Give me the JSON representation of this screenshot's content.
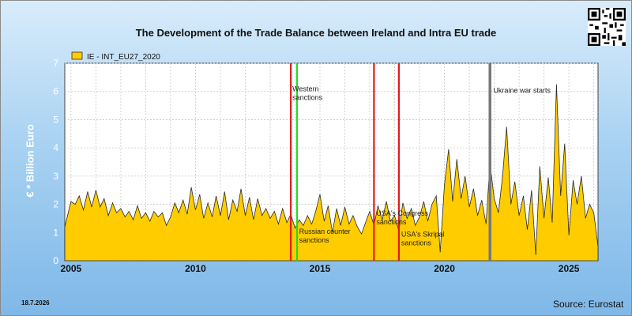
{
  "page": {
    "title": "The Development of the Trade Balance between Ireland and Intra EU trade",
    "date": "18.7.2026",
    "source": "Source: Eurostat",
    "qr_icon": "qr-code-icon"
  },
  "chart_data": {
    "type": "area",
    "title": "The Development of the Trade Balance between Ireland and Intra EU trade",
    "ylabel": "€ * Billion Euro",
    "xlabel": "",
    "xlim": [
      2004.75,
      2026.17
    ],
    "ylim": [
      0,
      7
    ],
    "yticks": [
      "0",
      "1",
      "2",
      "3",
      "4",
      "5",
      "6",
      "7"
    ],
    "xticks": [
      "2005",
      "2010",
      "2015",
      "2020",
      "2025"
    ],
    "grid": true,
    "legend_position": "top-left",
    "colors": {
      "fill": "#ffcc00",
      "stroke": "#2a2a2a",
      "red_marker": "#e41b1b",
      "green_marker": "#22dd22",
      "grey_marker": "#777777"
    },
    "series": [
      {
        "name": "IE - INT_EU27_2020",
        "points": [
          [
            2004.75,
            1.2
          ],
          [
            2005.0,
            2.1
          ],
          [
            2005.17,
            2.0
          ],
          [
            2005.33,
            2.3
          ],
          [
            2005.5,
            1.8
          ],
          [
            2005.67,
            2.45
          ],
          [
            2005.83,
            1.9
          ],
          [
            2006.0,
            2.5
          ],
          [
            2006.17,
            1.9
          ],
          [
            2006.33,
            2.2
          ],
          [
            2006.5,
            1.6
          ],
          [
            2006.67,
            2.05
          ],
          [
            2006.83,
            1.7
          ],
          [
            2007.0,
            1.85
          ],
          [
            2007.17,
            1.55
          ],
          [
            2007.33,
            1.75
          ],
          [
            2007.5,
            1.45
          ],
          [
            2007.67,
            1.95
          ],
          [
            2007.83,
            1.5
          ],
          [
            2008.0,
            1.7
          ],
          [
            2008.17,
            1.4
          ],
          [
            2008.33,
            1.75
          ],
          [
            2008.5,
            1.55
          ],
          [
            2008.67,
            1.7
          ],
          [
            2008.83,
            1.25
          ],
          [
            2009.0,
            1.55
          ],
          [
            2009.17,
            2.05
          ],
          [
            2009.33,
            1.7
          ],
          [
            2009.5,
            2.15
          ],
          [
            2009.67,
            1.65
          ],
          [
            2009.83,
            2.6
          ],
          [
            2010.0,
            1.8
          ],
          [
            2010.17,
            2.35
          ],
          [
            2010.33,
            1.5
          ],
          [
            2010.5,
            2.05
          ],
          [
            2010.67,
            1.55
          ],
          [
            2010.83,
            2.3
          ],
          [
            2011.0,
            1.6
          ],
          [
            2011.17,
            2.45
          ],
          [
            2011.33,
            1.45
          ],
          [
            2011.5,
            2.15
          ],
          [
            2011.67,
            1.75
          ],
          [
            2011.83,
            2.55
          ],
          [
            2012.0,
            1.6
          ],
          [
            2012.17,
            2.25
          ],
          [
            2012.33,
            1.45
          ],
          [
            2012.5,
            2.2
          ],
          [
            2012.67,
            1.6
          ],
          [
            2012.83,
            1.85
          ],
          [
            2013.0,
            1.5
          ],
          [
            2013.17,
            1.75
          ],
          [
            2013.33,
            1.3
          ],
          [
            2013.5,
            1.85
          ],
          [
            2013.67,
            1.35
          ],
          [
            2013.83,
            1.65
          ],
          [
            2014.0,
            1.15
          ],
          [
            2014.17,
            1.45
          ],
          [
            2014.33,
            1.25
          ],
          [
            2014.5,
            1.6
          ],
          [
            2014.67,
            1.3
          ],
          [
            2014.83,
            1.75
          ],
          [
            2015.0,
            2.35
          ],
          [
            2015.17,
            1.4
          ],
          [
            2015.33,
            1.95
          ],
          [
            2015.5,
            1.0
          ],
          [
            2015.67,
            1.85
          ],
          [
            2015.83,
            1.25
          ],
          [
            2016.0,
            1.9
          ],
          [
            2016.17,
            1.3
          ],
          [
            2016.33,
            1.6
          ],
          [
            2016.5,
            1.2
          ],
          [
            2016.67,
            0.95
          ],
          [
            2016.83,
            1.35
          ],
          [
            2017.0,
            1.75
          ],
          [
            2017.17,
            1.25
          ],
          [
            2017.33,
            1.95
          ],
          [
            2017.5,
            1.45
          ],
          [
            2017.67,
            2.1
          ],
          [
            2017.83,
            1.4
          ],
          [
            2018.0,
            1.6
          ],
          [
            2018.17,
            1.05
          ],
          [
            2018.33,
            2.05
          ],
          [
            2018.5,
            1.5
          ],
          [
            2018.67,
            1.85
          ],
          [
            2018.83,
            1.25
          ],
          [
            2019.0,
            1.55
          ],
          [
            2019.17,
            2.1
          ],
          [
            2019.33,
            1.4
          ],
          [
            2019.5,
            2.0
          ],
          [
            2019.67,
            2.3
          ],
          [
            2019.83,
            0.3
          ],
          [
            2020.0,
            2.7
          ],
          [
            2020.17,
            3.95
          ],
          [
            2020.33,
            2.1
          ],
          [
            2020.5,
            3.6
          ],
          [
            2020.67,
            2.2
          ],
          [
            2020.83,
            3.0
          ],
          [
            2021.0,
            1.9
          ],
          [
            2021.17,
            2.55
          ],
          [
            2021.33,
            1.6
          ],
          [
            2021.5,
            2.15
          ],
          [
            2021.67,
            1.3
          ],
          [
            2021.83,
            3.45
          ],
          [
            2022.0,
            2.2
          ],
          [
            2022.17,
            1.7
          ],
          [
            2022.33,
            2.95
          ],
          [
            2022.5,
            4.75
          ],
          [
            2022.67,
            2.0
          ],
          [
            2022.83,
            2.8
          ],
          [
            2023.0,
            1.6
          ],
          [
            2023.17,
            2.3
          ],
          [
            2023.33,
            1.1
          ],
          [
            2023.5,
            2.5
          ],
          [
            2023.67,
            0.2
          ],
          [
            2023.83,
            3.35
          ],
          [
            2024.0,
            1.5
          ],
          [
            2024.17,
            2.95
          ],
          [
            2024.33,
            1.35
          ],
          [
            2024.5,
            6.25
          ],
          [
            2024.67,
            2.3
          ],
          [
            2024.83,
            4.15
          ],
          [
            2025.0,
            0.9
          ],
          [
            2025.17,
            2.85
          ],
          [
            2025.33,
            2.0
          ],
          [
            2025.5,
            3.0
          ],
          [
            2025.67,
            1.5
          ],
          [
            2025.83,
            2.0
          ],
          [
            2026.0,
            1.7
          ],
          [
            2026.17,
            0.5
          ]
        ]
      }
    ],
    "markers": [
      {
        "x": 2013.83,
        "color": "red",
        "label": ""
      },
      {
        "x": 2014.08,
        "color": "green",
        "label": ""
      },
      {
        "x": 2017.17,
        "color": "red",
        "label": ""
      },
      {
        "x": 2018.17,
        "color": "red",
        "label": ""
      },
      {
        "x": 2021.83,
        "color": "grey",
        "label": ""
      }
    ],
    "annotations": [
      {
        "text_line1": "Western",
        "text_line2": "sanctions",
        "x": 2013.83,
        "y": 6.0
      },
      {
        "text_line1": "Russian counter",
        "text_line2": "sanctions",
        "x": 2014.1,
        "y": 0.95
      },
      {
        "text_line1": "USA's Congress",
        "text_line2": "sanctions",
        "x": 2017.2,
        "y": 1.6
      },
      {
        "text_line1": "USA's Skripal",
        "text_line2": "sanctions",
        "x": 2018.2,
        "y": 0.85
      },
      {
        "text_line1": "Ukraine war starts",
        "text_line2": "",
        "x": 2021.9,
        "y": 5.95
      }
    ]
  }
}
